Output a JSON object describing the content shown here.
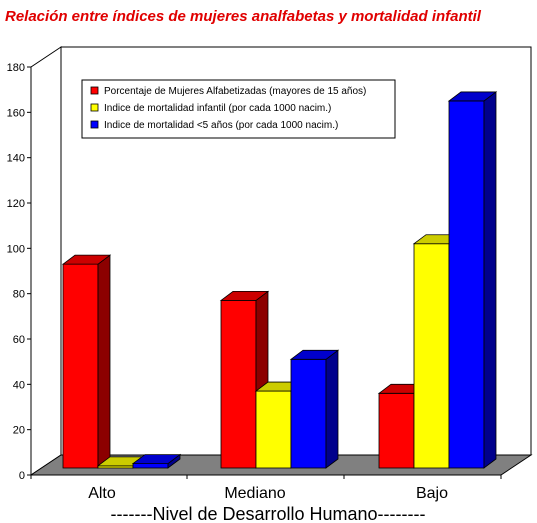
{
  "chart_data": {
    "type": "bar",
    "title": "Relación entre índices de mujeres analfabetas y mortalidad infantil",
    "xlabel": "-------Nivel de Desarrollo Humano--------",
    "ylabel": "",
    "ylim": [
      0,
      180
    ],
    "yticks": [
      0,
      20,
      40,
      60,
      80,
      100,
      120,
      140,
      160,
      180
    ],
    "categories": [
      "Alto",
      "Mediano",
      "Bajo"
    ],
    "series": [
      {
        "name": "Porcentaje de Mujeres Alfabetizadas (mayores de 15 años)",
        "color": "#ff0000",
        "values": [
          97,
          81,
          40
        ]
      },
      {
        "name": "Indice de mortalidad infantil    (por cada 1000 nacim.)",
        "color": "#ffff00",
        "values": [
          8,
          41,
          106
        ]
      },
      {
        "name": "Indice de mortalidad <5 años (por cada 1000 nacim.)",
        "color": "#0000ff",
        "values": [
          9,
          55,
          169
        ]
      }
    ],
    "legend_position": "top-left",
    "grid": false,
    "style": "3d"
  }
}
